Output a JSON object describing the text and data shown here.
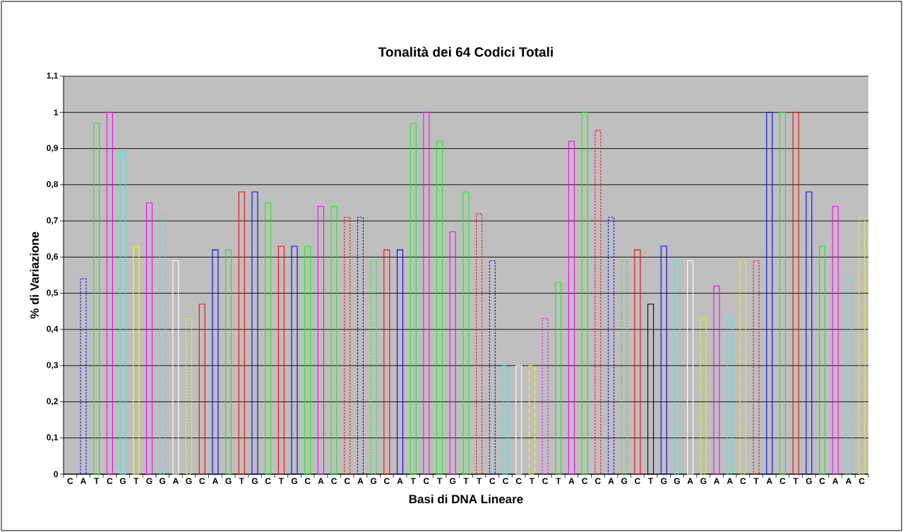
{
  "chart_data": {
    "type": "bar",
    "title": "Tonalità dei 64 Codici Totali",
    "xlabel": "Basi di DNA Lineare",
    "ylabel": "% di Variazione",
    "categories": [
      "C",
      "A",
      "T",
      "C",
      "G",
      "T",
      "G",
      "G",
      "A",
      "G",
      "C",
      "A",
      "G",
      "T",
      "G",
      "C",
      "T",
      "G",
      "C",
      "A",
      "C",
      "C",
      "A",
      "G",
      "C",
      "A",
      "T",
      "C",
      "T",
      "G",
      "T",
      "T",
      "C",
      "C",
      "C",
      "T",
      "C",
      "T",
      "A",
      "C",
      "C",
      "A",
      "G",
      "C",
      "T",
      "G",
      "G",
      "A",
      "G",
      "A",
      "A",
      "C",
      "T",
      "A",
      "C",
      "T",
      "G",
      "C",
      "A",
      "A",
      "C"
    ],
    "series": [
      {
        "line_style": "solid",
        "values": [
          null,
          null,
          0.97,
          1,
          0.89,
          0.63,
          0.75,
          null,
          0.59,
          null,
          0.47,
          0.62,
          0.62,
          0.78,
          0.78,
          0.75,
          0.63,
          0.63,
          0.63,
          0.74,
          0.74,
          null,
          null,
          null,
          0.62,
          0.62,
          0.97,
          1,
          0.92,
          0.67,
          0.78,
          null,
          null,
          null,
          0.3,
          null,
          null,
          0.53,
          0.92,
          1,
          null,
          null,
          null,
          0.62,
          0.47,
          0.63,
          null,
          0.59,
          null,
          0.52,
          null,
          null,
          null,
          1,
          1,
          1,
          0.78,
          0.63,
          0.74,
          null,
          null
        ],
        "colors": [
          null,
          null,
          "#00ff00",
          "#ff00ff",
          "#00ffff",
          "#ffff00",
          "#ff00ff",
          null,
          "#ffffff",
          null,
          "#ff0000",
          "#0000ff",
          "#00ff00",
          "#ff0000",
          "#0000ff",
          "#00ff00",
          "#ff0000",
          "#0000ff",
          "#00ff00",
          "#ff00ff",
          "#00ff00",
          null,
          null,
          null,
          "#ff0000",
          "#0000ff",
          "#00ff00",
          "#ff00ff",
          "#00ff00",
          "#ff00ff",
          "#00ff00",
          null,
          null,
          null,
          "#ffffff",
          null,
          null,
          "#00ff00",
          "#ff00ff",
          "#00ff00",
          null,
          null,
          null,
          "#ff0000",
          "#000000",
          "#0000ff",
          null,
          "#ffffff",
          null,
          "#ff00ff",
          null,
          null,
          null,
          "#0000ff",
          "#00ff00",
          "#ff0000",
          "#0000ff",
          "#00ff00",
          "#ff00ff",
          null,
          null
        ]
      },
      {
        "line_style": "dotted",
        "values": [
          null,
          0.54,
          null,
          null,
          null,
          null,
          null,
          0.72,
          null,
          0.43,
          null,
          null,
          null,
          null,
          null,
          null,
          null,
          null,
          null,
          null,
          null,
          0.71,
          0.71,
          0.59,
          null,
          null,
          null,
          null,
          null,
          null,
          null,
          0.72,
          0.59,
          null,
          null,
          null,
          0.43,
          null,
          null,
          null,
          0.95,
          0.71,
          0.59,
          null,
          null,
          null,
          0.59,
          null,
          0.43,
          null,
          0.43,
          0.59,
          0.59,
          null,
          null,
          null,
          null,
          null,
          null,
          0.54,
          0.71
        ],
        "colors": [
          null,
          "#0000ff",
          null,
          null,
          null,
          null,
          null,
          "#00ffff",
          null,
          "#ffff00",
          null,
          null,
          null,
          null,
          null,
          null,
          null,
          null,
          null,
          null,
          null,
          "#ff0000",
          "#0000ff",
          "#00ff00",
          null,
          null,
          null,
          null,
          null,
          null,
          null,
          "#ff0000",
          "#0000ff",
          null,
          null,
          null,
          "#ff00ff",
          null,
          null,
          null,
          "#ff0000",
          "#0000ff",
          "#00ff00",
          null,
          null,
          null,
          "#00ffff",
          null,
          "#ffff00",
          null,
          "#00ffff",
          "#ffff00",
          "#ff0000",
          null,
          null,
          null,
          null,
          null,
          null,
          "#00ffff",
          "#ffff00"
        ]
      },
      {
        "line_style": "dashed",
        "values": [
          null,
          null,
          null,
          null,
          null,
          null,
          null,
          null,
          null,
          null,
          null,
          null,
          null,
          null,
          null,
          null,
          null,
          null,
          null,
          null,
          null,
          null,
          null,
          null,
          null,
          null,
          null,
          null,
          null,
          null,
          null,
          null,
          null,
          0.3,
          null,
          0.3,
          null,
          null,
          null,
          null,
          null,
          null,
          null,
          null,
          null,
          null,
          null,
          null,
          null,
          null,
          null,
          null,
          null,
          null,
          null,
          null,
          null,
          null,
          null,
          null,
          null
        ],
        "colors": [
          null,
          null,
          null,
          null,
          null,
          null,
          null,
          null,
          null,
          null,
          null,
          null,
          null,
          null,
          null,
          null,
          null,
          null,
          null,
          null,
          null,
          null,
          null,
          null,
          null,
          null,
          null,
          null,
          null,
          null,
          null,
          null,
          null,
          "#00ffff",
          null,
          "#ffff00",
          null,
          null,
          null,
          null,
          null,
          null,
          null,
          null,
          null,
          null,
          null,
          null,
          null,
          null,
          null,
          null,
          null,
          null,
          null,
          null,
          null,
          null,
          null,
          null,
          null
        ]
      }
    ],
    "ylim": [
      0,
      1.1
    ],
    "yticks": [
      0,
      {
        "value": 0.1,
        "label": "0,1"
      },
      {
        "value": 0.2,
        "label": "0,2"
      },
      {
        "value": 0.3,
        "label": "0,3"
      },
      {
        "value": 0.4,
        "label": "0,4"
      },
      {
        "value": 0.5,
        "label": "0,5"
      },
      {
        "value": 0.6,
        "label": "0,6"
      },
      {
        "value": 0.7,
        "label": "0,7"
      },
      {
        "value": 0.8,
        "label": "0,8"
      },
      {
        "value": 0.9,
        "label": "0,9"
      },
      1,
      {
        "value": 1.1,
        "label": "1,1"
      }
    ],
    "grid": "y"
  }
}
